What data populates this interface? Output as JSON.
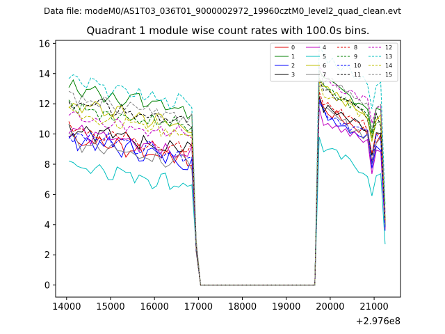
{
  "chart_data": {
    "type": "line",
    "suptitle": "Data file: modeM0/AS1T03_036T01_9000002972_19960cztM0_level2_quad_clean.evt",
    "title": "Quadrant 1 module wise count rates with 100.0s bins.",
    "xlabel": "",
    "ylabel": "",
    "x_offset_label": "+2.976e8",
    "xlim": [
      13750,
      21600
    ],
    "ylim": [
      -0.8,
      16.2
    ],
    "x_ticks": [
      14000,
      15000,
      16000,
      17000,
      18000,
      19000,
      20000,
      21000
    ],
    "x_tick_labels": [
      "14000",
      "15000",
      "16000",
      "17000",
      "18000",
      "19000",
      "20000",
      "21000"
    ],
    "y_ticks": [
      0,
      2,
      4,
      6,
      8,
      10,
      12,
      14,
      16
    ],
    "y_tick_labels": [
      "0",
      "2",
      "4",
      "6",
      "8",
      "10",
      "12",
      "14",
      "16"
    ],
    "legend_position": "top-right",
    "segments": [
      {
        "name": "active-1",
        "x_start": 14050,
        "x_end": 16850,
        "step": 100
      },
      {
        "name": "gap-drop",
        "x": [
          16950,
          17050
        ]
      },
      {
        "name": "off",
        "x_start": 17050,
        "x_end": 19650,
        "value": 0
      },
      {
        "name": "active-2",
        "x_start": 19750,
        "x_end": 21150,
        "step": 100
      },
      {
        "name": "end-drop",
        "x": [
          21250
        ]
      }
    ],
    "series": [
      {
        "name": "0",
        "color": "#e00000",
        "dash": false,
        "level1": 8.6,
        "level2": 10.6,
        "end": 3.8
      },
      {
        "name": "1",
        "color": "#008000",
        "dash": false,
        "level1": 11.9,
        "level2": 12.4,
        "end": 4.0
      },
      {
        "name": "2",
        "color": "#0000ff",
        "dash": false,
        "level1": 8.5,
        "level2": 10.3,
        "end": 3.6
      },
      {
        "name": "3",
        "color": "#000000",
        "dash": false,
        "level1": 9.3,
        "level2": 10.7,
        "end": 3.9
      },
      {
        "name": "4",
        "color": "#c000c0",
        "dash": false,
        "level1": 9.0,
        "level2": 9.9,
        "end": 3.7
      },
      {
        "name": "5",
        "color": "#00bfbf",
        "dash": false,
        "level1": 6.9,
        "level2": 8.0,
        "end": 2.7
      },
      {
        "name": "6",
        "color": "#bfbf00",
        "dash": false,
        "level1": 10.8,
        "level2": 11.9,
        "end": 4.3
      },
      {
        "name": "7",
        "color": "#808080",
        "dash": false,
        "level1": 8.4,
        "level2": 10.4,
        "end": 3.9
      },
      {
        "name": "8",
        "color": "#e00000",
        "dash": true,
        "level1": 9.3,
        "level2": 11.0,
        "end": 4.1
      },
      {
        "name": "9",
        "color": "#008000",
        "dash": true,
        "level1": 10.7,
        "level2": 11.9,
        "end": 4.4
      },
      {
        "name": "10",
        "color": "#0000ff",
        "dash": true,
        "level1": 8.9,
        "level2": 10.5,
        "end": 3.8
      },
      {
        "name": "11",
        "color": "#000000",
        "dash": true,
        "level1": 11.0,
        "level2": 11.8,
        "end": 4.3
      },
      {
        "name": "12",
        "color": "#c000c0",
        "dash": true,
        "level1": 10.2,
        "level2": 12.7,
        "end": 4.8
      },
      {
        "name": "13",
        "color": "#00bfbf",
        "dash": true,
        "level1": 12.3,
        "level2": 14.1,
        "end": 5.3
      },
      {
        "name": "14",
        "color": "#bfbf00",
        "dash": true,
        "level1": 10.3,
        "level2": 11.7,
        "end": 4.4
      },
      {
        "name": "15",
        "color": "#808080",
        "dash": true,
        "level1": 11.3,
        "level2": 12.6,
        "end": 4.8
      }
    ]
  }
}
